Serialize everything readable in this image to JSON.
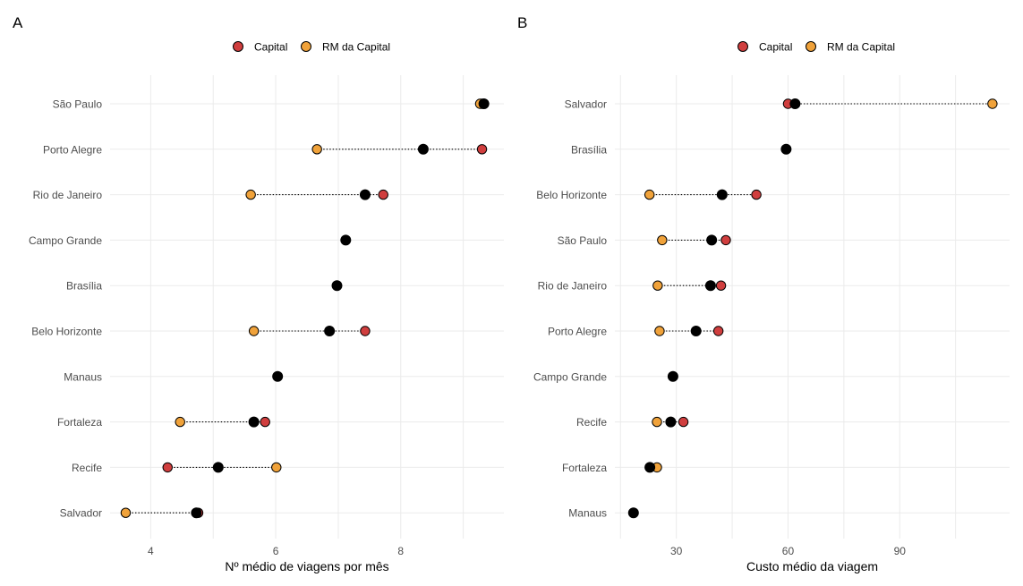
{
  "legend": {
    "capital_label": "Capital",
    "rm_label": "RM da Capital"
  },
  "colors": {
    "capital": "#d03e3e",
    "rm": "#f0a23a",
    "overall": "#000000"
  },
  "chart_data": [
    {
      "type": "scatter",
      "panel": "A",
      "xlabel": "Nº médio de viagens por mês",
      "ylabel": "",
      "xlim": [
        3.35,
        9.65
      ],
      "xticks": [
        4,
        6,
        8
      ],
      "grid": true,
      "legend_position": "top",
      "categories": [
        "São Paulo",
        "Porto Alegre",
        "Rio de Janeiro",
        "Campo Grande",
        "Brasília",
        "Belo Horizonte",
        "Manaus",
        "Fortaleza",
        "Recife",
        "Salvador"
      ],
      "series": [
        {
          "name": "Capital",
          "values": [
            9.3,
            9.3,
            7.72,
            null,
            null,
            7.43,
            null,
            5.83,
            4.27,
            4.76
          ]
        },
        {
          "name": "RM da Capital",
          "values": [
            9.27,
            6.66,
            5.6,
            null,
            null,
            5.65,
            null,
            4.47,
            6.01,
            3.6
          ]
        },
        {
          "name": "",
          "values": [
            9.33,
            8.36,
            7.43,
            7.12,
            6.98,
            6.86,
            6.03,
            5.65,
            5.08,
            4.73
          ]
        }
      ]
    },
    {
      "type": "scatter",
      "panel": "B",
      "xlabel": "Custo médio da viagem",
      "ylabel": "",
      "xlim": [
        13.5,
        119.5
      ],
      "xticks": [
        30,
        60,
        90
      ],
      "grid": true,
      "legend_position": "top",
      "categories": [
        "Salvador",
        "Brasília",
        "Belo Horizonte",
        "São Paulo",
        "Rio de Janeiro",
        "Porto Alegre",
        "Campo Grande",
        "Recife",
        "Fortaleza",
        "Manaus"
      ],
      "series": [
        {
          "name": "Capital",
          "values": [
            60,
            null,
            51.5,
            43.3,
            42,
            41.3,
            null,
            31.9,
            null,
            null
          ]
        },
        {
          "name": "RM da Capital",
          "values": [
            114.9,
            null,
            22.8,
            26.2,
            25,
            25.5,
            null,
            24.8,
            24.8,
            null
          ]
        },
        {
          "name": "",
          "values": [
            61.9,
            59.5,
            42.3,
            39.5,
            39.2,
            35.3,
            29.1,
            28.5,
            22.9,
            18.5
          ]
        }
      ]
    }
  ]
}
